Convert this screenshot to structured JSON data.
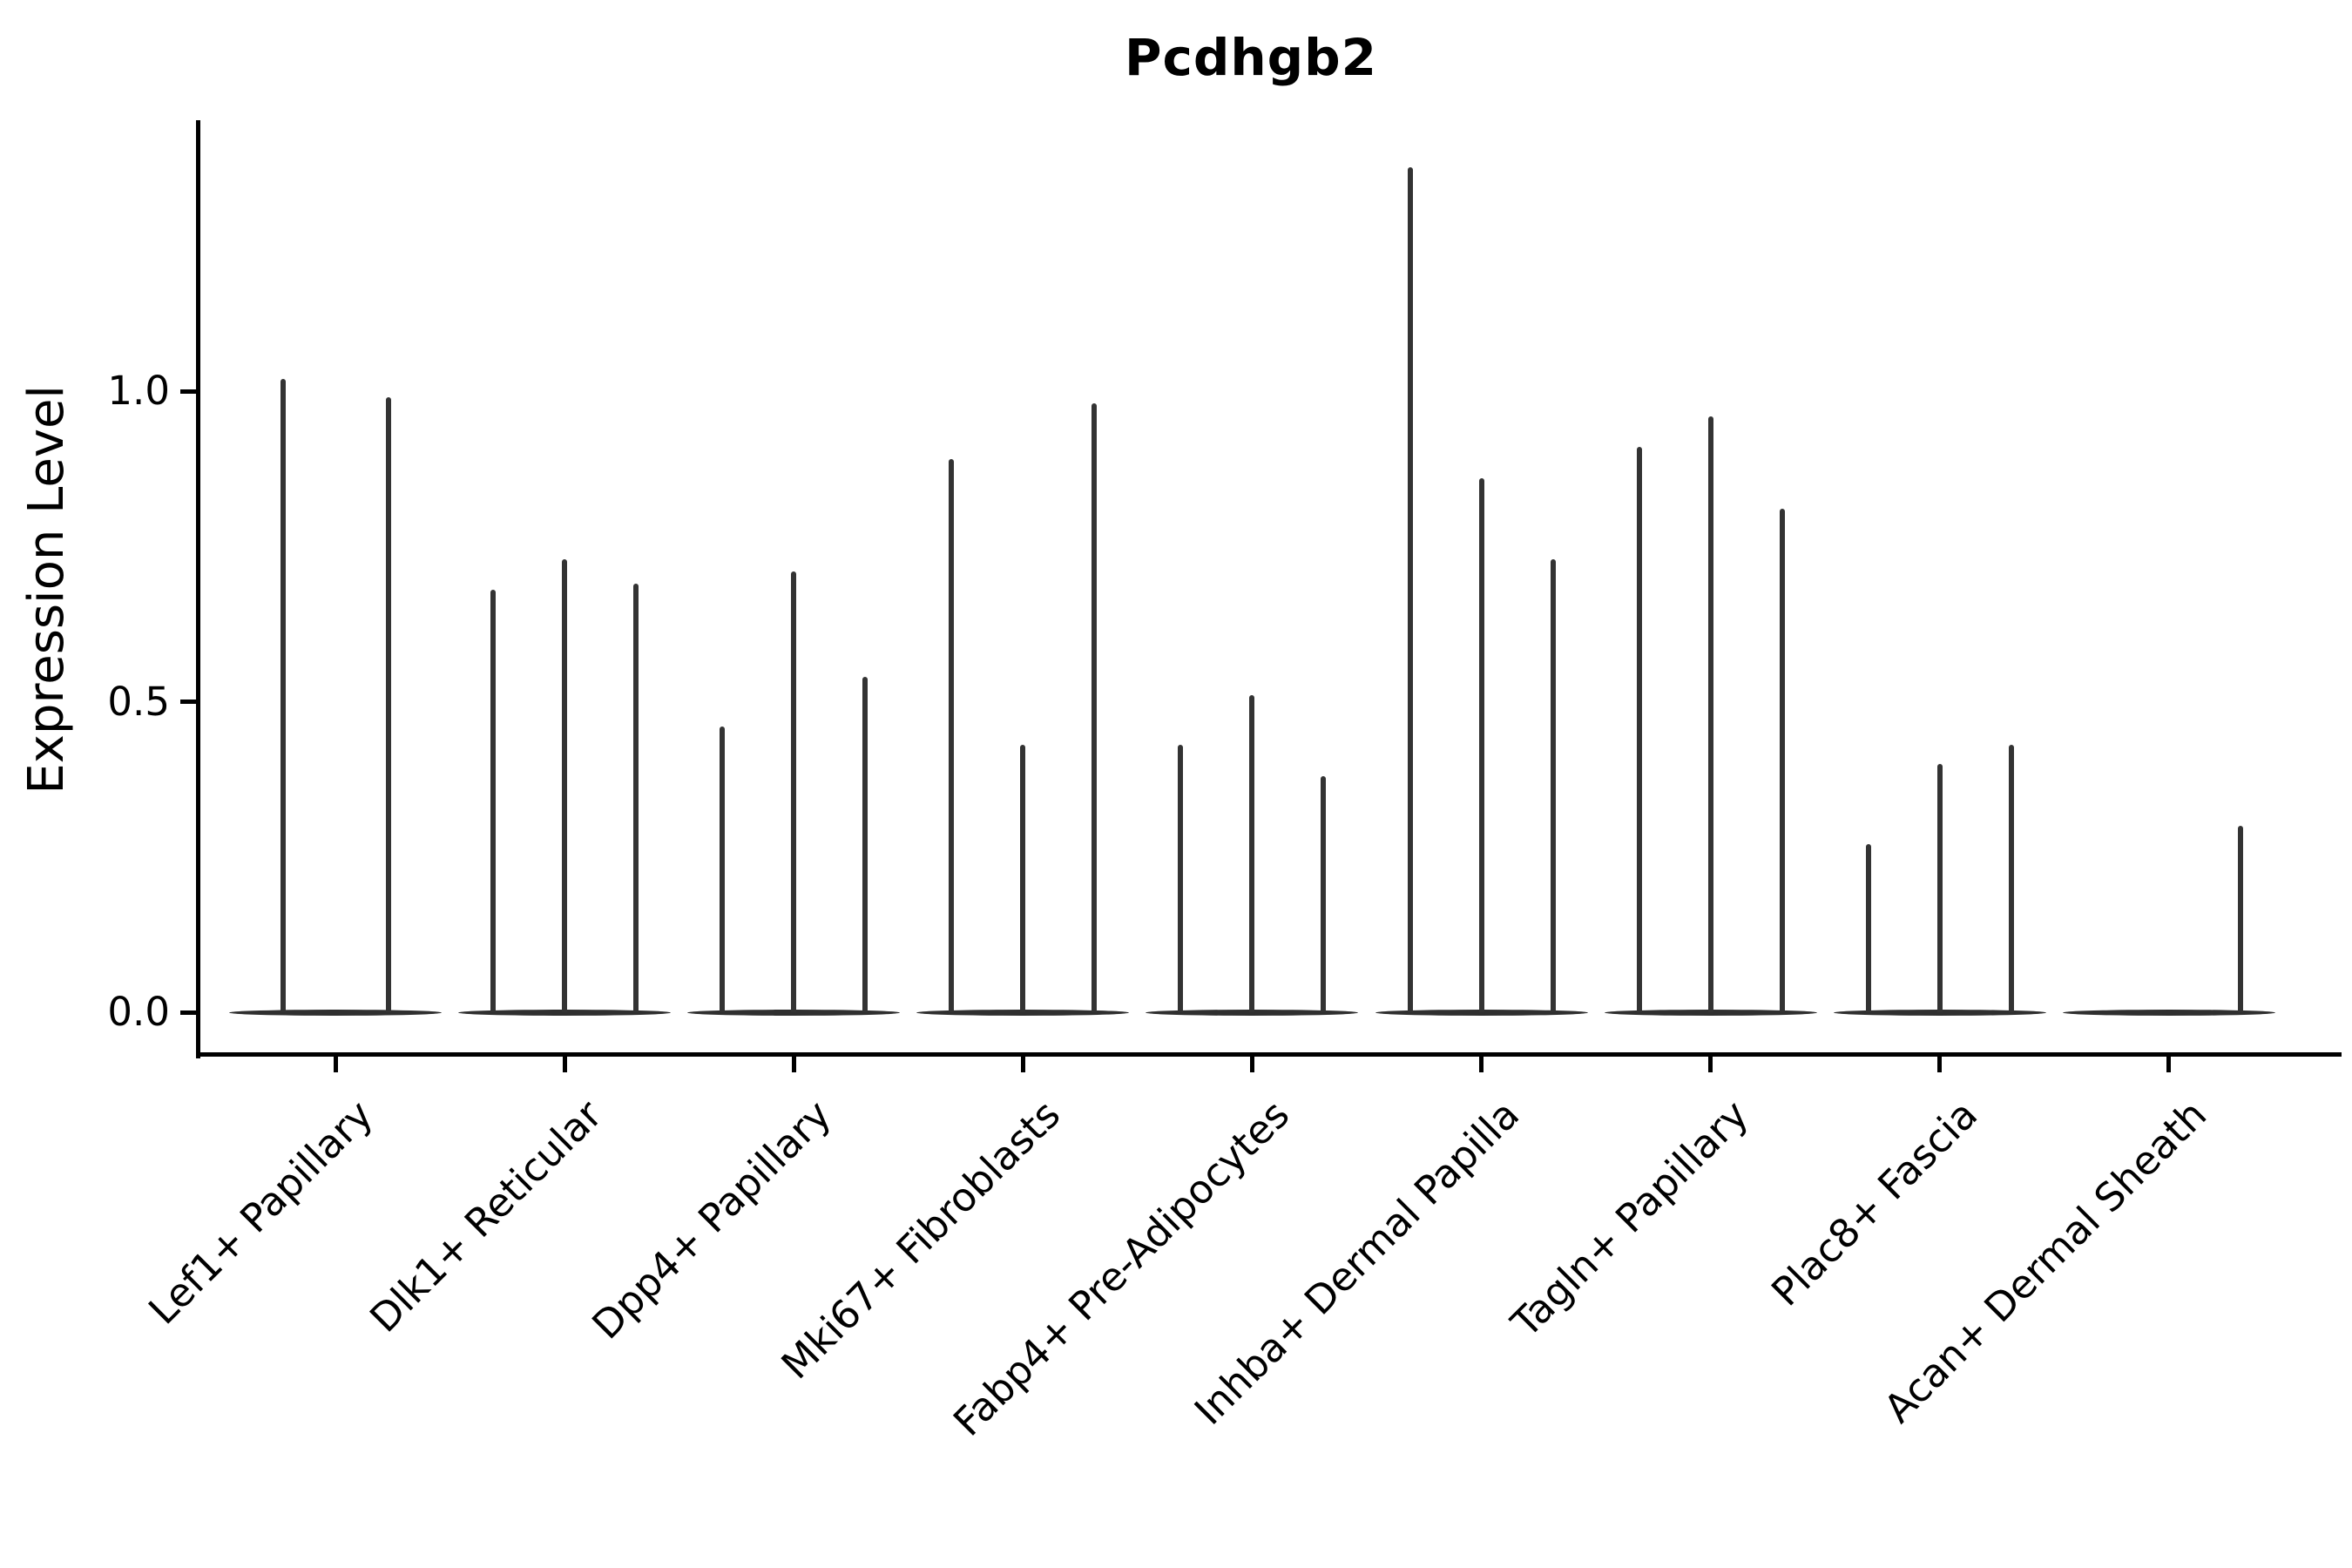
{
  "chart_data": {
    "type": "violin",
    "title": "Pcdhgb2",
    "ylabel": "Expression Level",
    "xlabel": "",
    "ytick_values": [
      0.0,
      0.5,
      1.0
    ],
    "ylim": [
      -0.07,
      1.43
    ],
    "grid": false,
    "legend": false,
    "line_color": "#333333",
    "background_color": "#ffffff",
    "categories": [
      "Lef1+ Papillary",
      "Dlk1+ Reticular",
      "Dpp4+ Papillary",
      "Mki67+ Fibroblasts",
      "Fabp4+ Pre-Adipocytes",
      "Inhba+ Dermal Papilla",
      "Tagln+ Papillary",
      "Plac8+ Fascia",
      "Acan+ Dermal Sheath"
    ],
    "series": [
      {
        "category": "Lef1+ Papillary",
        "violin_peaks": [
          1.02,
          0.99
        ]
      },
      {
        "category": "Dlk1+ Reticular",
        "violin_peaks": [
          0.68,
          0.73,
          0.69
        ]
      },
      {
        "category": "Dpp4+ Papillary",
        "violin_peaks": [
          0.46,
          0.71,
          0.54
        ]
      },
      {
        "category": "Mki67+ Fibroblasts",
        "violin_peaks": [
          0.89,
          0.43,
          0.98
        ]
      },
      {
        "category": "Fabp4+ Pre-Adipocytes",
        "violin_peaks": [
          0.43,
          0.51,
          0.38
        ]
      },
      {
        "category": "Inhba+ Dermal Papilla",
        "violin_peaks": [
          1.36,
          0.86,
          0.73
        ]
      },
      {
        "category": "Tagln+ Papillary",
        "violin_peaks": [
          0.91,
          0.96,
          0.81
        ]
      },
      {
        "category": "Plac8+ Fascia",
        "violin_peaks": [
          0.27,
          0.4,
          0.43
        ]
      },
      {
        "category": "Acan+ Dermal Sheath",
        "violin_peaks": [
          0.0,
          0.0,
          0.3
        ]
      }
    ]
  }
}
